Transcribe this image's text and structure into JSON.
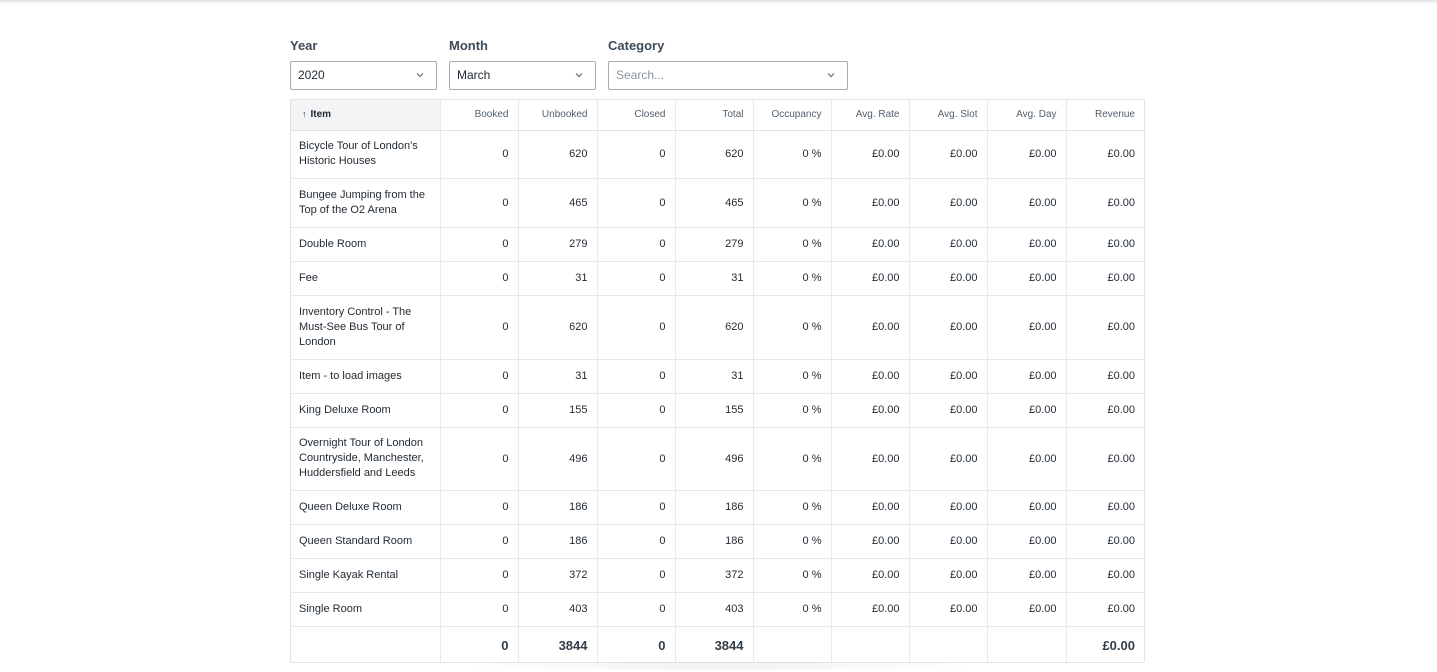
{
  "filters": {
    "year": {
      "label": "Year",
      "value": "2020"
    },
    "month": {
      "label": "Month",
      "value": "March"
    },
    "category": {
      "label": "Category",
      "placeholder": "Search..."
    }
  },
  "table": {
    "sort_icon": "arrow-up-icon",
    "columns": [
      "Item",
      "Booked",
      "Unbooked",
      "Closed",
      "Total",
      "Occupancy",
      "Avg. Rate",
      "Avg. Slot",
      "Avg. Day",
      "Revenue"
    ],
    "rows": [
      {
        "item": "Bicycle Tour of London's Historic Houses",
        "booked": "0",
        "unbooked": "620",
        "closed": "0",
        "total": "620",
        "occupancy": "0 %",
        "avg_rate": "£0.00",
        "avg_slot": "£0.00",
        "avg_day": "£0.00",
        "revenue": "£0.00"
      },
      {
        "item": "Bungee Jumping from the Top of the O2 Arena",
        "booked": "0",
        "unbooked": "465",
        "closed": "0",
        "total": "465",
        "occupancy": "0 %",
        "avg_rate": "£0.00",
        "avg_slot": "£0.00",
        "avg_day": "£0.00",
        "revenue": "£0.00"
      },
      {
        "item": "Double Room",
        "booked": "0",
        "unbooked": "279",
        "closed": "0",
        "total": "279",
        "occupancy": "0 %",
        "avg_rate": "£0.00",
        "avg_slot": "£0.00",
        "avg_day": "£0.00",
        "revenue": "£0.00"
      },
      {
        "item": "Fee",
        "booked": "0",
        "unbooked": "31",
        "closed": "0",
        "total": "31",
        "occupancy": "0 %",
        "avg_rate": "£0.00",
        "avg_slot": "£0.00",
        "avg_day": "£0.00",
        "revenue": "£0.00"
      },
      {
        "item": "Inventory Control - The Must-See Bus Tour of London",
        "booked": "0",
        "unbooked": "620",
        "closed": "0",
        "total": "620",
        "occupancy": "0 %",
        "avg_rate": "£0.00",
        "avg_slot": "£0.00",
        "avg_day": "£0.00",
        "revenue": "£0.00"
      },
      {
        "item": "Item - to load images",
        "booked": "0",
        "unbooked": "31",
        "closed": "0",
        "total": "31",
        "occupancy": "0 %",
        "avg_rate": "£0.00",
        "avg_slot": "£0.00",
        "avg_day": "£0.00",
        "revenue": "£0.00"
      },
      {
        "item": "King Deluxe Room",
        "booked": "0",
        "unbooked": "155",
        "closed": "0",
        "total": "155",
        "occupancy": "0 %",
        "avg_rate": "£0.00",
        "avg_slot": "£0.00",
        "avg_day": "£0.00",
        "revenue": "£0.00"
      },
      {
        "item": "Overnight Tour of London Countryside, Manchester, Huddersfield and Leeds",
        "booked": "0",
        "unbooked": "496",
        "closed": "0",
        "total": "496",
        "occupancy": "0 %",
        "avg_rate": "£0.00",
        "avg_slot": "£0.00",
        "avg_day": "£0.00",
        "revenue": "£0.00"
      },
      {
        "item": "Queen Deluxe Room",
        "booked": "0",
        "unbooked": "186",
        "closed": "0",
        "total": "186",
        "occupancy": "0 %",
        "avg_rate": "£0.00",
        "avg_slot": "£0.00",
        "avg_day": "£0.00",
        "revenue": "£0.00"
      },
      {
        "item": "Queen Standard Room",
        "booked": "0",
        "unbooked": "186",
        "closed": "0",
        "total": "186",
        "occupancy": "0 %",
        "avg_rate": "£0.00",
        "avg_slot": "£0.00",
        "avg_day": "£0.00",
        "revenue": "£0.00"
      },
      {
        "item": "Single Kayak Rental",
        "booked": "0",
        "unbooked": "372",
        "closed": "0",
        "total": "372",
        "occupancy": "0 %",
        "avg_rate": "£0.00",
        "avg_slot": "£0.00",
        "avg_day": "£0.00",
        "revenue": "£0.00"
      },
      {
        "item": "Single Room",
        "booked": "0",
        "unbooked": "403",
        "closed": "0",
        "total": "403",
        "occupancy": "0 %",
        "avg_rate": "£0.00",
        "avg_slot": "£0.00",
        "avg_day": "£0.00",
        "revenue": "£0.00"
      }
    ],
    "totals": {
      "booked": "0",
      "unbooked": "3844",
      "closed": "0",
      "total": "3844",
      "revenue": "£0.00"
    }
  }
}
